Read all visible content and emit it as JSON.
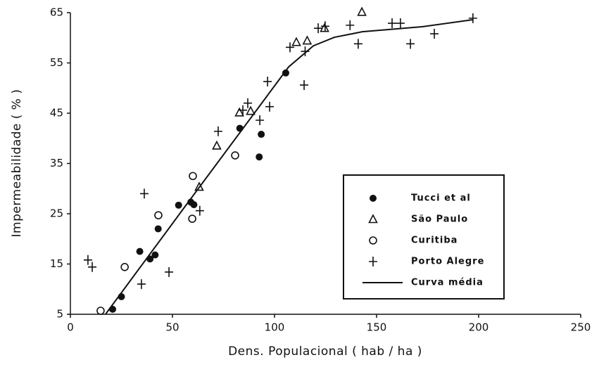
{
  "chart_data": {
    "type": "scatter",
    "x_label": "Dens. Populacional ( hab / ha )",
    "y_label": "Impermeabilidade ( % )",
    "xlim": [
      0,
      250
    ],
    "ylim": [
      5,
      65
    ],
    "xticks": [
      0,
      50,
      100,
      150,
      200,
      250
    ],
    "yticks": [
      5,
      15,
      25,
      35,
      45,
      55,
      65
    ],
    "legend": "lower right",
    "series": [
      {
        "name": "Tucci et al",
        "marker": "filled-circle",
        "color": "#111111",
        "x": [
          20.7,
          25,
          34,
          39,
          41.5,
          43,
          53,
          59,
          60.5,
          83,
          92.5,
          93.5,
          105.5
        ],
        "values": [
          6,
          8.5,
          17.5,
          16,
          16.8,
          22,
          26.7,
          27.3,
          26.8,
          42,
          36.3,
          40.8,
          53
        ]
      },
      {
        "name": "São Paulo",
        "marker": "triangle",
        "color": "#111111",
        "x": [
          63.1,
          71.7,
          82.8,
          88.3,
          110.7,
          116,
          124.5,
          142.8
        ],
        "values": [
          30.3,
          38.5,
          45.1,
          45.4,
          59.1,
          59.4,
          61.9,
          65.1
        ]
      },
      {
        "name": "Curitiba",
        "marker": "circle",
        "color": "#111111",
        "x": [
          14.8,
          26.6,
          43.1,
          60,
          59.7,
          80.7
        ],
        "values": [
          5.7,
          14.4,
          24.7,
          32.5,
          24,
          36.6
        ]
      },
      {
        "name": "Porto Alegre",
        "marker": "plus",
        "color": "#111111",
        "x": [
          8.6,
          10.7,
          34.8,
          36.2,
          48.3,
          63.4,
          72.4,
          84.5,
          86.9,
          92.8,
          96.6,
          97.6,
          114.5,
          107.6,
          115,
          121.4,
          124.8,
          137,
          141,
          157.6,
          161.7,
          166.6,
          178.3,
          197.2
        ],
        "values": [
          15.8,
          14.4,
          11,
          29,
          13.4,
          25.6,
          41.4,
          45.6,
          47,
          43.6,
          51.3,
          46.3,
          50.6,
          58.1,
          57.3,
          61.9,
          62.3,
          62.5,
          58.8,
          62.9,
          62.9,
          58.8,
          60.8,
          63.9
        ]
      },
      {
        "name": "Curva média",
        "marker": "line",
        "color": "#111111",
        "x": [
          17.2,
          55,
          106.9,
          119,
          129.3,
          143,
          172.4,
          197.2
        ],
        "values": [
          5,
          25.8,
          54.2,
          58.4,
          60.1,
          61.2,
          62.2,
          63.6
        ]
      }
    ]
  }
}
